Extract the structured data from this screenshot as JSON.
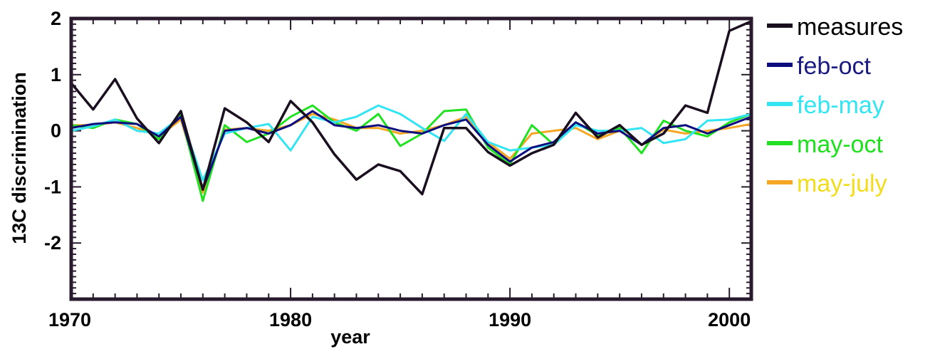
{
  "chart_data": {
    "type": "line",
    "xlabel": "year",
    "ylabel": "13C discrimination",
    "xlim": [
      1970,
      2001
    ],
    "ylim": [
      -3,
      2
    ],
    "x_ticks": [
      1970,
      1980,
      1990,
      2000
    ],
    "y_ticks": [
      -2,
      -1,
      0,
      1,
      2
    ],
    "legend_position": "right",
    "x": [
      1970,
      1971,
      1972,
      1973,
      1974,
      1975,
      1976,
      1977,
      1978,
      1979,
      1980,
      1981,
      1982,
      1983,
      1984,
      1985,
      1986,
      1987,
      1988,
      1989,
      1990,
      1991,
      1992,
      1993,
      1994,
      1995,
      1996,
      1997,
      1998,
      1999,
      2000,
      2001
    ],
    "series": [
      {
        "name": "measures",
        "color": "#1a0f1f",
        "values": [
          0.85,
          0.38,
          0.92,
          0.22,
          -0.22,
          0.35,
          -1.05,
          0.4,
          0.15,
          -0.2,
          0.53,
          0.15,
          -0.42,
          -0.87,
          -0.6,
          -0.72,
          -1.13,
          0.05,
          0.05,
          -0.38,
          -0.62,
          -0.4,
          -0.25,
          0.32,
          -0.12,
          0.1,
          -0.25,
          -0.05,
          0.45,
          0.32,
          1.78,
          1.95
        ]
      },
      {
        "name": "feb-oct",
        "color": "#0d0d80",
        "values": [
          0.05,
          0.12,
          0.15,
          0.12,
          -0.1,
          0.25,
          -1.05,
          0.0,
          0.05,
          -0.05,
          0.1,
          0.35,
          0.1,
          0.05,
          0.1,
          0.0,
          -0.05,
          0.1,
          0.2,
          -0.25,
          -0.55,
          -0.3,
          -0.2,
          0.15,
          -0.05,
          0.0,
          -0.25,
          0.05,
          0.1,
          -0.05,
          0.1,
          0.25
        ]
      },
      {
        "name": "feb-may",
        "color": "#33e5f2",
        "values": [
          0.0,
          0.08,
          0.2,
          0.0,
          -0.05,
          0.25,
          -0.88,
          -0.05,
          0.05,
          0.12,
          -0.35,
          0.25,
          0.15,
          0.25,
          0.45,
          0.3,
          0.05,
          -0.18,
          0.3,
          -0.2,
          -0.35,
          -0.3,
          -0.25,
          0.1,
          0.0,
          0.0,
          0.05,
          -0.22,
          -0.15,
          0.18,
          0.2,
          0.3
        ]
      },
      {
        "name": "may-oct",
        "color": "#22e022",
        "values": [
          0.1,
          0.05,
          0.2,
          0.12,
          -0.15,
          0.28,
          -1.25,
          0.1,
          -0.2,
          -0.05,
          0.25,
          0.45,
          0.15,
          0.0,
          0.3,
          -0.27,
          -0.05,
          0.35,
          0.38,
          -0.3,
          -0.6,
          0.1,
          -0.25,
          0.15,
          -0.08,
          0.05,
          -0.4,
          0.18,
          0.0,
          -0.1,
          0.15,
          0.3
        ]
      },
      {
        "name": "may-july",
        "color": "#f5a623",
        "values": [
          0.1,
          0.1,
          0.15,
          0.05,
          -0.1,
          0.2,
          -1.1,
          0.02,
          0.05,
          0.0,
          0.1,
          0.3,
          0.2,
          0.05,
          0.05,
          -0.05,
          0.0,
          0.1,
          0.25,
          -0.2,
          -0.5,
          -0.05,
          0.0,
          0.05,
          -0.15,
          0.0,
          -0.25,
          0.02,
          -0.05,
          0.0,
          0.05,
          0.12
        ]
      }
    ],
    "legend_text_colors": [
      "#000000",
      "#1a1a80",
      "#33e5f2",
      "#1ee01e",
      "#f2dc1e"
    ]
  }
}
